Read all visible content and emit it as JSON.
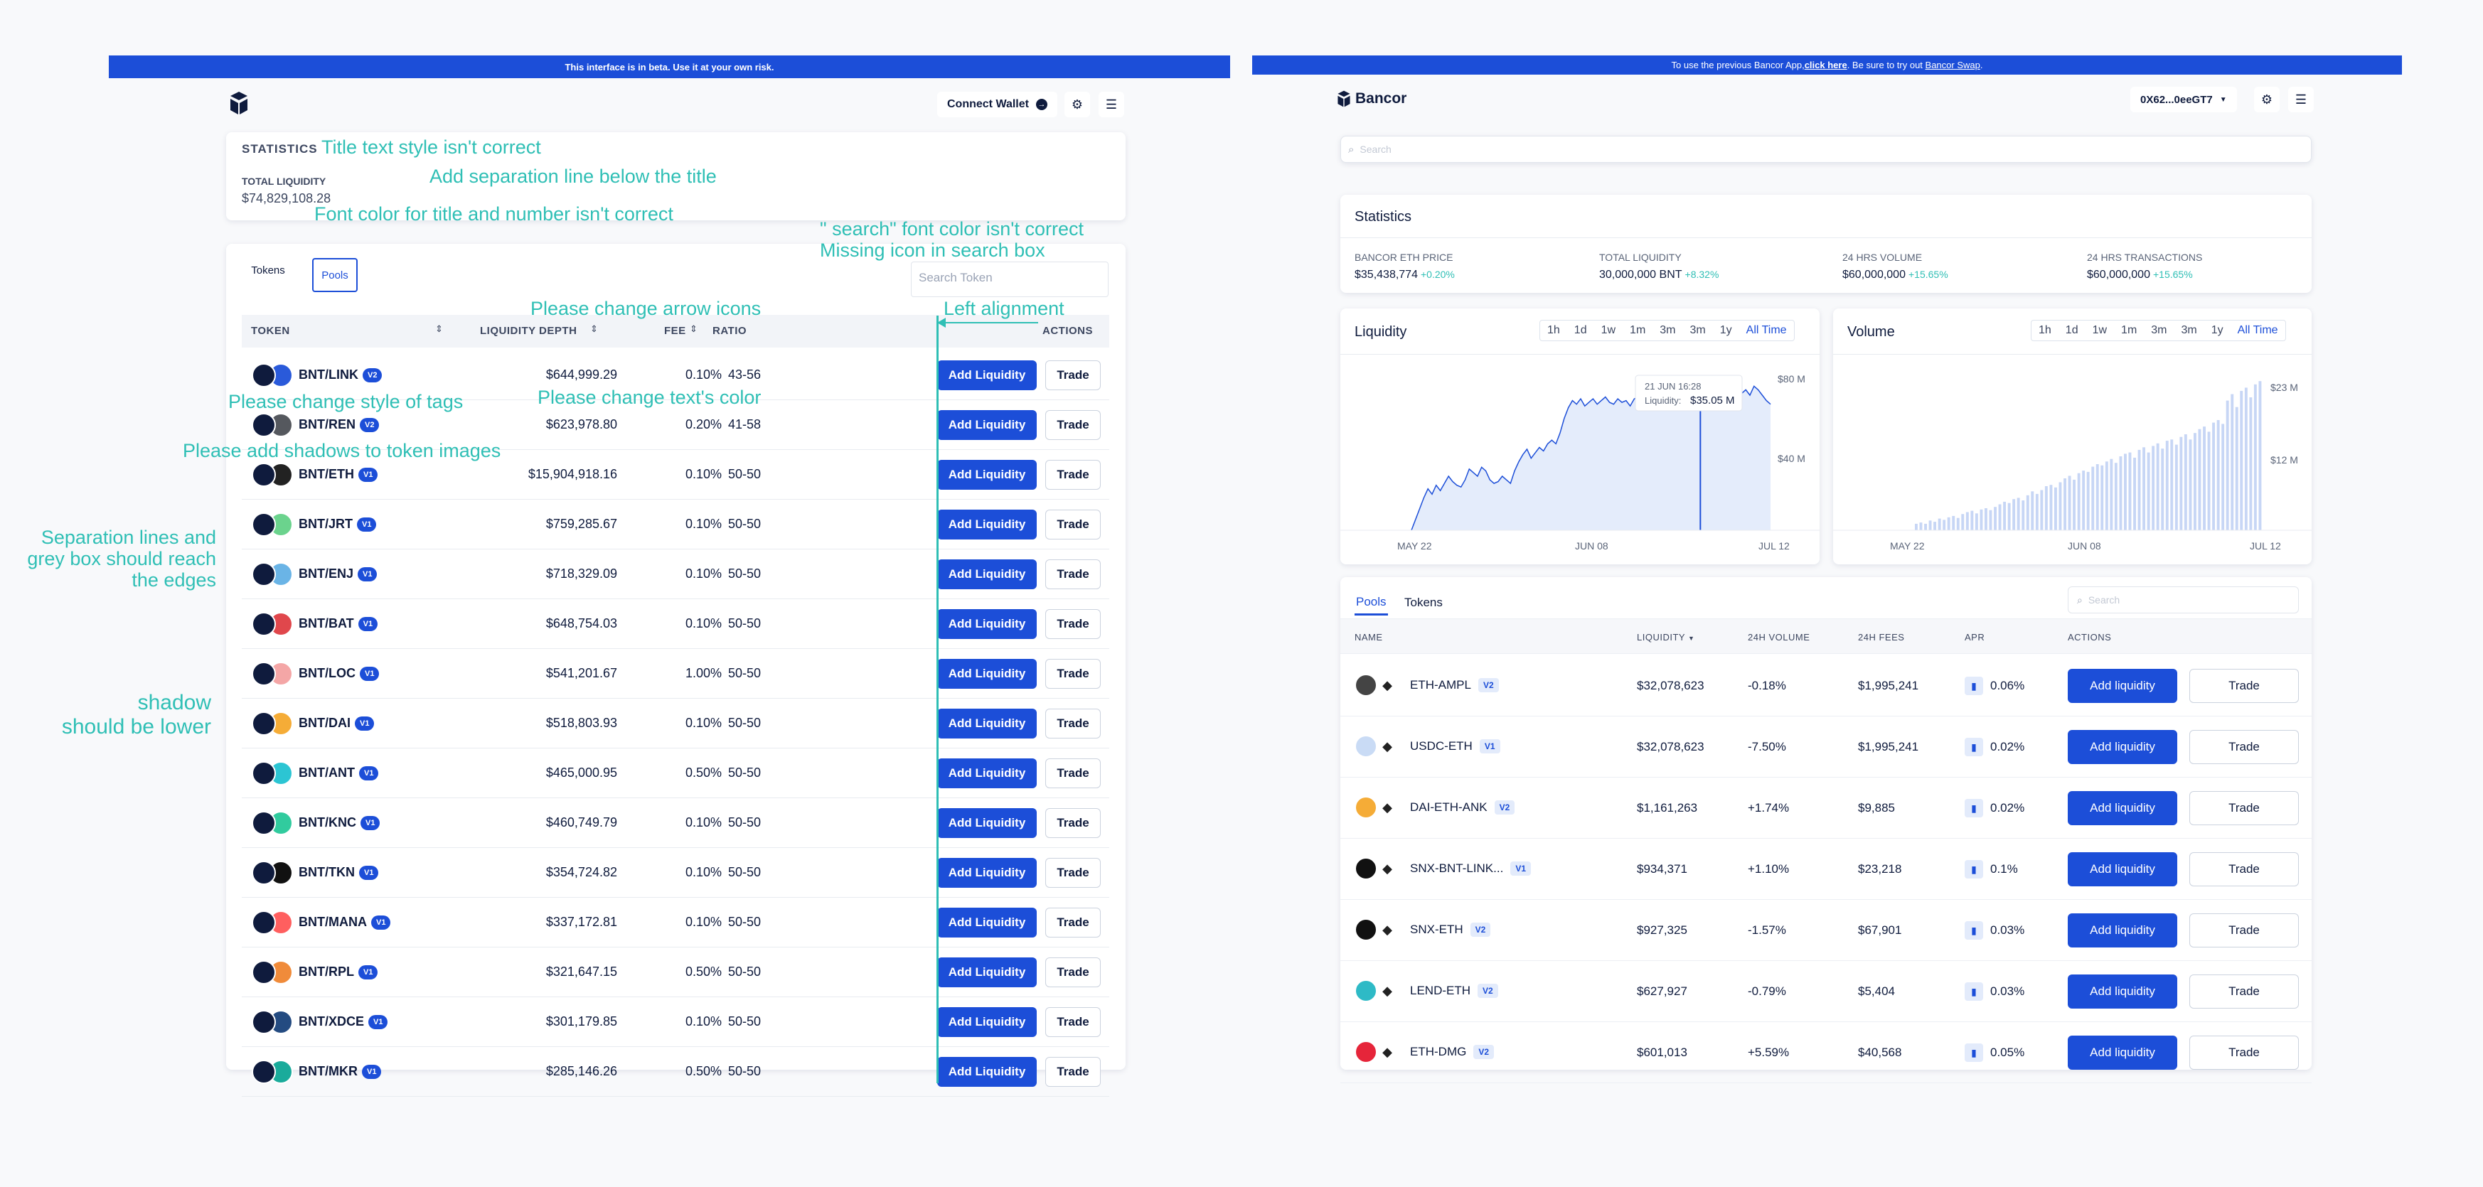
{
  "left": {
    "banner": "This interface is in beta. Use it at your own risk.",
    "connect_wallet": "Connect Wallet",
    "stats_title": "STATISTICS",
    "total_liquidity_label": "TOTAL LIQUIDITY",
    "total_liquidity_value": "$74,829,108.28",
    "tabs": [
      "Tokens",
      "Pools"
    ],
    "search_placeholder": "Search Token",
    "headers": {
      "token": "TOKEN",
      "depth": "LIQUIDITY DEPTH",
      "fee": "FEE",
      "ratio": "RATIO",
      "actions": "ACTIONS"
    },
    "add_label": "Add Liquidity",
    "trade_label": "Trade",
    "rows": [
      {
        "pair": "BNT/LINK",
        "ver": "V2",
        "depth": "$644,999.29",
        "fee": "0.10%",
        "ratio": "43-56",
        "color": "#2a5ada"
      },
      {
        "pair": "BNT/REN",
        "ver": "V2",
        "depth": "$623,978.80",
        "fee": "0.20%",
        "ratio": "41-58",
        "color": "#55585e"
      },
      {
        "pair": "BNT/ETH",
        "ver": "V1",
        "depth": "$15,904,918.16",
        "fee": "0.10%",
        "ratio": "50-50",
        "color": "#222222"
      },
      {
        "pair": "BNT/JRT",
        "ver": "V1",
        "depth": "$759,285.67",
        "fee": "0.10%",
        "ratio": "50-50",
        "color": "#6bd38d"
      },
      {
        "pair": "BNT/ENJ",
        "ver": "V1",
        "depth": "$718,329.09",
        "fee": "0.10%",
        "ratio": "50-50",
        "color": "#6ab4e6"
      },
      {
        "pair": "BNT/BAT",
        "ver": "V1",
        "depth": "$648,754.03",
        "fee": "0.10%",
        "ratio": "50-50",
        "color": "#e0474c"
      },
      {
        "pair": "BNT/LOC",
        "ver": "V1",
        "depth": "$541,201.67",
        "fee": "1.00%",
        "ratio": "50-50",
        "color": "#f4a6a6"
      },
      {
        "pair": "BNT/DAI",
        "ver": "V1",
        "depth": "$518,803.93",
        "fee": "0.10%",
        "ratio": "50-50",
        "color": "#f5ac37"
      },
      {
        "pair": "BNT/ANT",
        "ver": "V1",
        "depth": "$465,000.95",
        "fee": "0.50%",
        "ratio": "50-50",
        "color": "#2cc5d3"
      },
      {
        "pair": "BNT/KNC",
        "ver": "V1",
        "depth": "$460,749.79",
        "fee": "0.10%",
        "ratio": "50-50",
        "color": "#31cb9e"
      },
      {
        "pair": "BNT/TKN",
        "ver": "V1",
        "depth": "$354,724.82",
        "fee": "0.10%",
        "ratio": "50-50",
        "color": "#111111"
      },
      {
        "pair": "BNT/MANA",
        "ver": "V1",
        "depth": "$337,172.81",
        "fee": "0.10%",
        "ratio": "50-50",
        "color": "#ff5f5f"
      },
      {
        "pair": "BNT/RPL",
        "ver": "V1",
        "depth": "$321,647.15",
        "fee": "0.50%",
        "ratio": "50-50",
        "color": "#f08b3a"
      },
      {
        "pair": "BNT/XDCE",
        "ver": "V1",
        "depth": "$301,179.85",
        "fee": "0.10%",
        "ratio": "50-50",
        "color": "#244b81"
      },
      {
        "pair": "BNT/MKR",
        "ver": "V1",
        "depth": "$285,146.26",
        "fee": "0.50%",
        "ratio": "50-50",
        "color": "#1aab9b"
      }
    ]
  },
  "annotations": {
    "title_style": "Title text style isn't correct",
    "separation": "Add separation line below the title",
    "font_color": "Font color for title and number isn't correct",
    "search_color": "\" search\" font color isn't correct",
    "missing_icon": "Missing icon in search box",
    "arrow_icons": "Please change arrow icons",
    "left_align": "Left alignment",
    "text_color": "Please change text's color",
    "tags_style": "Please change style of tags",
    "shadows": "Please add shadows to token images",
    "sep_lines_1": "Separation lines and",
    "sep_lines_2": "grey box should reach",
    "sep_lines_3": "the edges",
    "shadow_1": "shadow",
    "shadow_2": "should be lower"
  },
  "right": {
    "banner_prefix": "To use the previous Bancor App, ",
    "banner_link1": "click here",
    "banner_mid": ". Be sure to try out ",
    "banner_link2": "Bancor Swap",
    "banner_suffix": ".",
    "brand": "Bancor",
    "wallet": "0X62...0eeGT7",
    "search_placeholder": "Search",
    "stats_title": "Statistics",
    "stats": [
      {
        "label": "BANCOR ETH PRICE",
        "value": "$35,438,774",
        "change": "+0.20%"
      },
      {
        "label": "TOTAL LIQUIDITY",
        "value": "30,000,000 BNT",
        "change": "+8.32%"
      },
      {
        "label": "24 HRS VOLUME",
        "value": "$60,000,000",
        "change": "+15.65%"
      },
      {
        "label": "24 HRS TRANSACTIONS",
        "value": "$60,000,000",
        "change": "+15.65%"
      }
    ],
    "ranges": [
      "1h",
      "1d",
      "1w",
      "1m",
      "3m",
      "3m",
      "1y",
      "All Time"
    ],
    "liquidity_chart": {
      "title": "Liquidity",
      "y_ticks": [
        "$80 M",
        "$40 M"
      ],
      "x_ticks": [
        "MAY 22",
        "JUN 08",
        "JUL 12"
      ],
      "tooltip_date": "21 JUN 16:28",
      "tooltip_label": "Liquidity:",
      "tooltip_value": "$35.05 M"
    },
    "volume_chart": {
      "title": "Volume",
      "y_ticks": [
        "$23 M",
        "$12 M"
      ],
      "x_ticks": [
        "MAY 22",
        "JUN 08",
        "JUL 12"
      ]
    },
    "tabs": [
      "Pools",
      "Tokens"
    ],
    "pool_search": "Search",
    "headers": {
      "name": "NAME",
      "liquidity": "LIQUIDITY",
      "volume": "24H VOLUME",
      "fees": "24H FEES",
      "apr": "APR",
      "actions": "ACTIONS"
    },
    "add_label": "Add liquidity",
    "trade_label": "Trade",
    "rows": [
      {
        "name": "ETH-AMPL",
        "ver": "V2",
        "liq": "$32,078,623",
        "vol": "-0.18%",
        "fees": "$1,995,241",
        "apr": "0.06%",
        "c1": "#444444",
        "c2": "#ffffff"
      },
      {
        "name": "USDC-ETH",
        "ver": "V1",
        "liq": "$32,078,623",
        "vol": "-7.50%",
        "fees": "$1,995,241",
        "apr": "0.02%",
        "c1": "#c9dbf5",
        "c2": "#ffffff"
      },
      {
        "name": "DAI-ETH-ANK",
        "ver": "V2",
        "liq": "$1,161,263",
        "vol": "+1.74%",
        "fees": "$9,885",
        "apr": "0.02%",
        "c1": "#f5ac37",
        "c2": "#ffffff"
      },
      {
        "name": "SNX-BNT-LINK...",
        "ver": "V1",
        "liq": "$934,371",
        "vol": "+1.10%",
        "fees": "$23,218",
        "apr": "0.1%",
        "c1": "#111111",
        "c2": "#0f1b3d"
      },
      {
        "name": "SNX-ETH",
        "ver": "V2",
        "liq": "$927,325",
        "vol": "-1.57%",
        "fees": "$67,901",
        "apr": "0.03%",
        "c1": "#111111",
        "c2": "#ffffff"
      },
      {
        "name": "LEND-ETH",
        "ver": "V2",
        "liq": "$627,927",
        "vol": "-0.79%",
        "fees": "$5,404",
        "apr": "0.03%",
        "c1": "#2ebac6",
        "c2": "#ffffff"
      },
      {
        "name": "ETH-DMG",
        "ver": "V2",
        "liq": "$601,013",
        "vol": "+5.59%",
        "fees": "$40,568",
        "apr": "0.05%",
        "c1": "#e6253a",
        "c2": "#ffffff"
      }
    ]
  },
  "chart_data": [
    {
      "type": "line",
      "title": "Liquidity",
      "x_ticks": [
        "MAY 22",
        "JUN 08",
        "JUL 12"
      ],
      "y_ticks": [
        "$80 M",
        "$40 M"
      ],
      "ylim": [
        0,
        90
      ],
      "values": [
        0,
        6,
        12,
        18,
        23,
        20,
        25,
        22,
        26,
        30,
        27,
        25,
        24,
        28,
        34,
        32,
        30,
        35,
        33,
        28,
        26,
        27,
        30,
        28,
        26,
        33,
        38,
        42,
        45,
        40,
        43,
        46,
        44,
        48,
        50,
        48,
        54,
        62,
        68,
        72,
        70,
        73,
        69,
        71,
        73,
        70,
        72,
        74,
        71,
        70,
        73,
        71,
        72,
        69,
        73,
        74,
        70,
        72,
        75,
        71,
        73,
        70,
        73,
        74,
        71,
        70,
        76,
        78,
        74,
        73,
        72,
        70,
        72,
        74,
        71,
        75,
        72,
        75,
        70,
        73,
        76,
        78,
        75,
        80,
        78,
        75,
        72,
        70
      ]
    },
    {
      "type": "bar",
      "title": "Volume",
      "x_ticks": [
        "MAY 22",
        "JUN 08",
        "JUL 12"
      ],
      "y_ticks": [
        "$23 M",
        "$12 M"
      ],
      "ylim": [
        0,
        25
      ],
      "values": [
        1,
        1.2,
        1,
        1.5,
        1.3,
        1.8,
        1.6,
        2,
        2.2,
        1.9,
        2.5,
        2.8,
        3,
        2.6,
        3.2,
        3.4,
        3.1,
        3.6,
        4,
        4.4,
        4.2,
        4.8,
        5,
        4.6,
        5.4,
        6,
        5.6,
        6.2,
        6.8,
        7,
        6.6,
        7.4,
        8,
        8.4,
        7.8,
        8.8,
        9.2,
        9,
        9.8,
        10.2,
        10,
        10.6,
        11,
        10.4,
        11.4,
        11.8,
        12,
        11.2,
        12.4,
        12.8,
        12,
        13,
        13.4,
        12.6,
        13.8,
        14,
        13.2,
        14.4,
        14.8,
        14,
        15,
        15.6,
        16,
        15.2,
        16.6,
        17,
        16.4,
        20,
        21,
        19,
        21.5,
        22,
        20.5,
        22.5,
        23
      ]
    }
  ]
}
